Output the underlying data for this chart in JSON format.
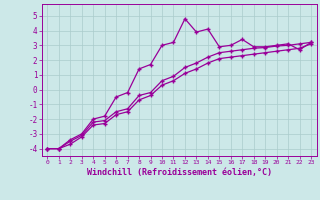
{
  "xlabel": "Windchill (Refroidissement éolien,°C)",
  "xlim": [
    -0.5,
    23.5
  ],
  "ylim": [
    -4.5,
    5.8
  ],
  "xticks": [
    0,
    1,
    2,
    3,
    4,
    5,
    6,
    7,
    8,
    9,
    10,
    11,
    12,
    13,
    14,
    15,
    16,
    17,
    18,
    19,
    20,
    21,
    22,
    23
  ],
  "yticks": [
    -4,
    -3,
    -2,
    -1,
    0,
    1,
    2,
    3,
    4,
    5
  ],
  "bg_color": "#cce8e8",
  "line_color": "#990099",
  "grid_color": "#aacccc",
  "curve1_x": [
    0,
    1,
    2,
    3,
    4,
    5,
    6,
    7,
    8,
    9,
    10,
    11,
    12,
    13,
    14,
    15,
    16,
    17,
    18,
    19,
    20,
    21,
    22,
    23
  ],
  "curve1_y": [
    -4.0,
    -4.0,
    -3.4,
    -3.0,
    -2.0,
    -1.8,
    -0.5,
    -0.2,
    1.4,
    1.7,
    3.0,
    3.2,
    4.8,
    3.9,
    4.1,
    2.9,
    3.0,
    3.4,
    2.9,
    2.9,
    3.0,
    3.1,
    2.7,
    3.2
  ],
  "curve2_x": [
    0,
    1,
    2,
    3,
    4,
    5,
    6,
    7,
    8,
    9,
    10,
    11,
    12,
    13,
    14,
    15,
    16,
    17,
    18,
    19,
    20,
    21,
    22,
    23
  ],
  "curve2_y": [
    -4.0,
    -4.0,
    -3.5,
    -3.1,
    -2.2,
    -2.1,
    -1.5,
    -1.3,
    -0.4,
    -0.2,
    0.6,
    0.9,
    1.5,
    1.8,
    2.2,
    2.5,
    2.6,
    2.7,
    2.8,
    2.85,
    2.95,
    3.0,
    3.1,
    3.2
  ],
  "curve3_x": [
    0,
    1,
    2,
    3,
    4,
    5,
    6,
    7,
    8,
    9,
    10,
    11,
    12,
    13,
    14,
    15,
    16,
    17,
    18,
    19,
    20,
    21,
    22,
    23
  ],
  "curve3_y": [
    -4.0,
    -4.0,
    -3.7,
    -3.2,
    -2.4,
    -2.3,
    -1.7,
    -1.5,
    -0.7,
    -0.4,
    0.3,
    0.6,
    1.1,
    1.4,
    1.8,
    2.1,
    2.2,
    2.3,
    2.4,
    2.5,
    2.6,
    2.7,
    2.8,
    3.1
  ]
}
